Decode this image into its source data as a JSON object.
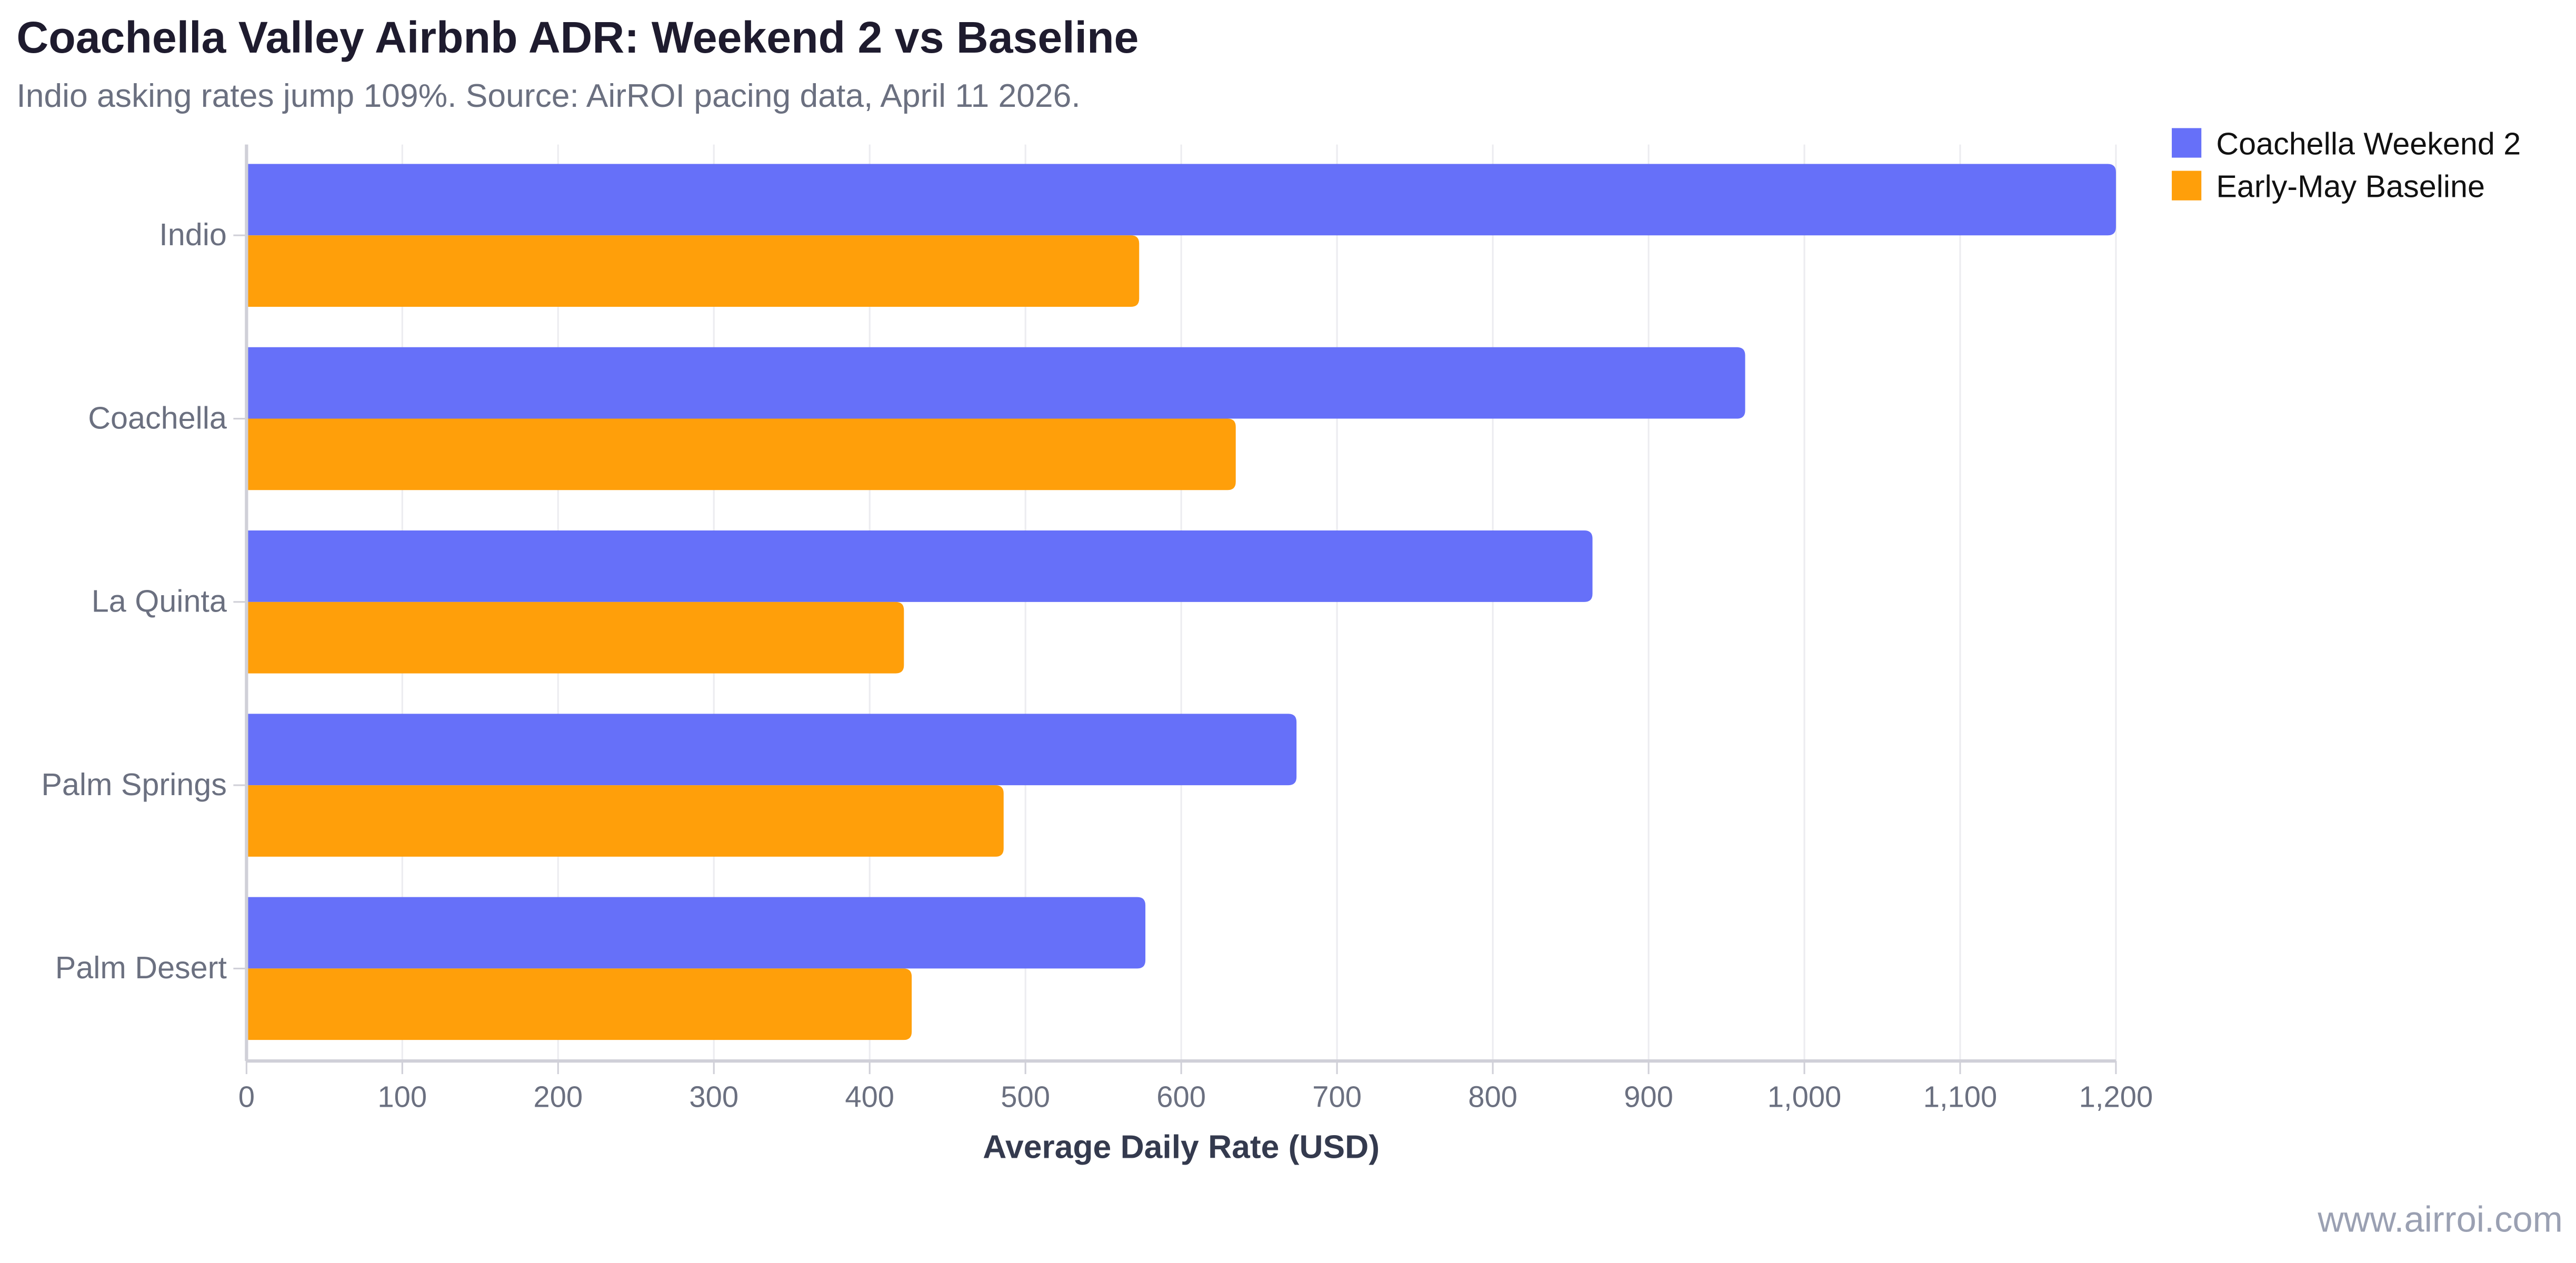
{
  "chart_data": {
    "type": "bar",
    "orientation": "horizontal",
    "title": "Coachella Valley Airbnb ADR: Weekend 2 vs Baseline",
    "subtitle": "Indio asking rates jump 109%. Source: AirROI pacing data, April 11 2026.",
    "xlabel": "Average Daily Rate (USD)",
    "ylabel": "",
    "xlim": [
      0,
      1200
    ],
    "x_ticks": [
      0,
      100,
      200,
      300,
      400,
      500,
      600,
      700,
      800,
      900,
      1000,
      1100,
      1200
    ],
    "x_tick_labels": [
      "0",
      "100",
      "200",
      "300",
      "400",
      "500",
      "600",
      "700",
      "800",
      "900",
      "1,000",
      "1,100",
      "1,200"
    ],
    "grid": true,
    "legend_position": "top-right",
    "categories": [
      "Indio",
      "Coachella",
      "La Quinta",
      "Palm Springs",
      "Palm Desert"
    ],
    "series": [
      {
        "name": "Coachella Weekend 2",
        "color": "#6670f9",
        "values": [
          1200,
          962,
          864,
          674,
          577
        ]
      },
      {
        "name": "Early-May Baseline",
        "color": "#ff9f0a",
        "values": [
          573,
          635,
          422,
          486,
          427
        ]
      }
    ]
  },
  "watermark": "www.airroi.com"
}
